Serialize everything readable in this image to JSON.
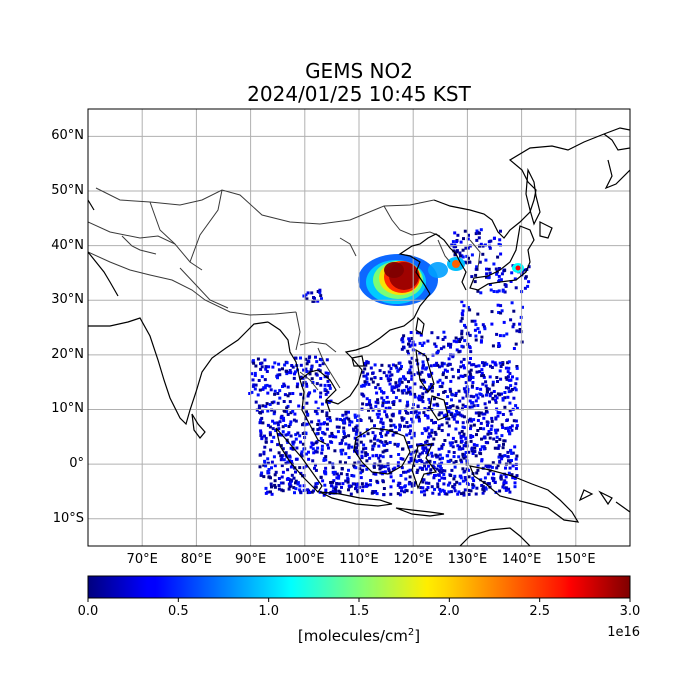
{
  "title": {
    "line1": "GEMS NO2",
    "line2": "2024/01/25 10:45 KST"
  },
  "map": {
    "extent": {
      "lon_min": 60,
      "lon_max": 160,
      "lat_min": -15,
      "lat_max": 65
    },
    "grid": true,
    "lat_ticks": [
      {
        "value": 60,
        "label": "60°N"
      },
      {
        "value": 50,
        "label": "50°N"
      },
      {
        "value": 40,
        "label": "40°N"
      },
      {
        "value": 30,
        "label": "30°N"
      },
      {
        "value": 20,
        "label": "20°N"
      },
      {
        "value": 10,
        "label": "10°N"
      },
      {
        "value": 0,
        "label": "0°"
      },
      {
        "value": -10,
        "label": "10°S"
      }
    ],
    "lon_ticks": [
      {
        "value": 70,
        "label": "70°E"
      },
      {
        "value": 80,
        "label": "80°E"
      },
      {
        "value": 90,
        "label": "90°E"
      },
      {
        "value": 100,
        "label": "100°E"
      },
      {
        "value": 110,
        "label": "110°E"
      },
      {
        "value": 120,
        "label": "120°E"
      },
      {
        "value": 130,
        "label": "130°E"
      },
      {
        "value": 140,
        "label": "140°E"
      },
      {
        "value": 150,
        "label": "150°E"
      }
    ],
    "colors": {
      "coastline": "#000000",
      "borders": "#3a3a3a",
      "gridlines": "#b0b0b0"
    }
  },
  "colorbar": {
    "colormap": "jet",
    "min": 0.0,
    "max": 3.0,
    "ticks": [
      "0.0",
      "0.5",
      "1.0",
      "1.5",
      "2.0",
      "2.5",
      "3.0"
    ],
    "unit_text": "[molecules/cm",
    "unit_sup": "2",
    "unit_close": "]",
    "exponent": "1e16"
  }
}
